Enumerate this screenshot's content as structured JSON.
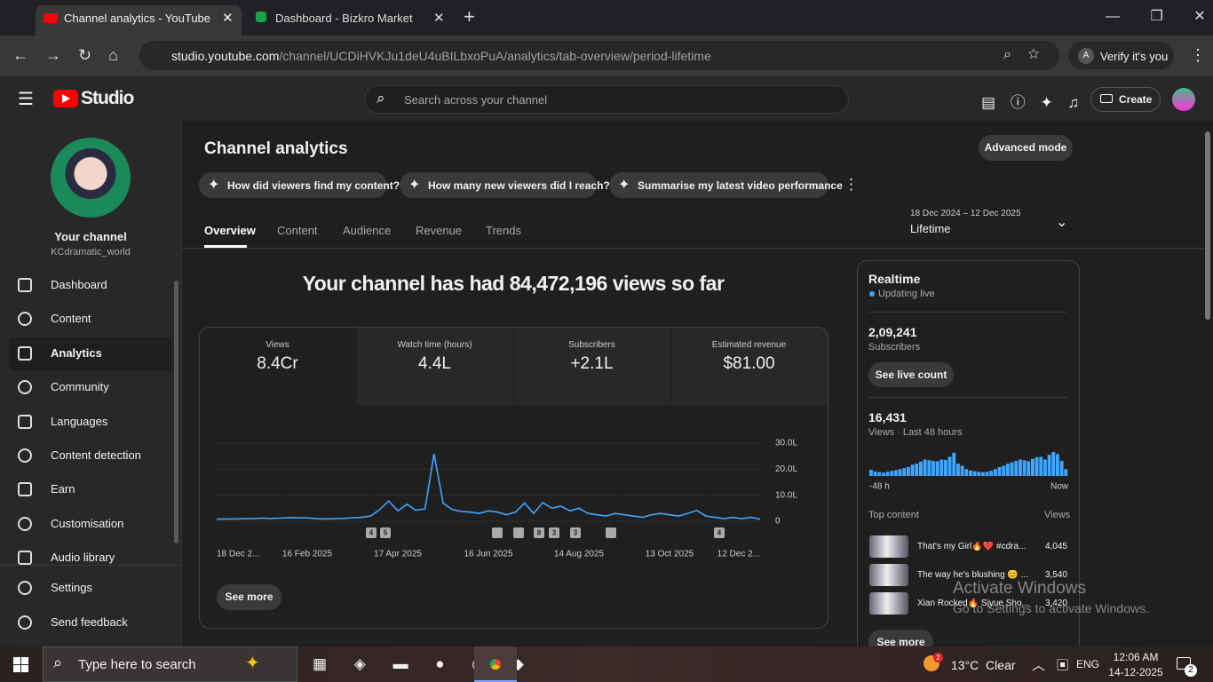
{
  "browser": {
    "tabs": [
      "Channel analytics - YouTube Studio",
      "Dashboard - Bizkro Market"
    ],
    "url_host": "studio.youtube.com",
    "url_path": "/channel/UCDiHVKJu1deU4uBILbxoPuA/analytics/tab-overview/period-lifetime",
    "profile_initial": "A",
    "profile_label": "Verify it's you"
  },
  "header": {
    "logo": "Studio",
    "search_placeholder": "Search across your channel",
    "create": "Create"
  },
  "sidebar": {
    "channel_title": "Your channel",
    "channel_handle": "KCdramatic_world",
    "nav": [
      "Dashboard",
      "Content",
      "Analytics",
      "Community",
      "Languages",
      "Content detection",
      "Earn",
      "Customisation",
      "Audio library"
    ],
    "footer": [
      "Settings",
      "Send feedback"
    ]
  },
  "analytics": {
    "title": "Channel analytics",
    "advanced_mode": "Advanced mode",
    "chips": [
      "How did viewers find my content?",
      "How many new viewers did I reach?",
      "Summarise my latest video performance"
    ],
    "tabs": [
      "Overview",
      "Content",
      "Audience",
      "Revenue",
      "Trends"
    ],
    "date_range": "18 Dec 2024 – 12 Dec 2025",
    "period": "Lifetime",
    "headline": "Your channel has had 84,472,196 views so far",
    "metrics": [
      {
        "label": "Views",
        "value": "8.4Cr"
      },
      {
        "label": "Watch time (hours)",
        "value": "4.4L"
      },
      {
        "label": "Subscribers",
        "value": "+2.1L"
      },
      {
        "label": "Estimated revenue",
        "value": "$81.00"
      }
    ],
    "see_more": "See more"
  },
  "realtime": {
    "title": "Realtime",
    "status": "Updating live",
    "subscribers": "2,09,241",
    "subscribers_label": "Subscribers",
    "live_count": "See live count",
    "views": "16,431",
    "views_label": "Views · Last 48 hours",
    "top_content": "Top content",
    "views_header": "Views",
    "top": [
      {
        "title": "That's my Girl🔥❤️ #cdra...",
        "views": "4,045"
      },
      {
        "title": "The way he's blushing 😊 ...",
        "views": "3,540"
      },
      {
        "title": "Xian Rocked🔥 Siyue Sho...",
        "views": "3,420"
      }
    ],
    "see_more": "See more"
  },
  "chart_data": [
    {
      "type": "line",
      "categories": [
        "18 Dec 2...",
        null,
        null,
        null,
        null,
        null,
        null,
        null,
        null,
        null,
        "16 Feb 2025",
        null,
        null,
        null,
        null,
        null,
        null,
        null,
        null,
        null,
        "17 Apr 2025",
        null,
        null,
        null,
        null,
        null,
        null,
        null,
        null,
        null,
        "16 Jun 2025",
        null,
        null,
        null,
        null,
        null,
        null,
        null,
        null,
        null,
        "14 Aug 2025",
        null,
        null,
        null,
        null,
        null,
        null,
        null,
        null,
        null,
        "13 Oct 2025",
        null,
        null,
        null,
        null,
        null,
        null,
        null,
        null,
        null,
        "12 Dec 2..."
      ],
      "values": [
        80000,
        90000,
        90000,
        100000,
        100000,
        120000,
        110000,
        120000,
        140000,
        130000,
        130000,
        100000,
        90000,
        100000,
        110000,
        130000,
        150000,
        200000,
        450000,
        780000,
        400000,
        650000,
        420000,
        480000,
        2590000,
        700000,
        450000,
        380000,
        350000,
        300000,
        400000,
        350000,
        250000,
        350000,
        700000,
        300000,
        720000,
        500000,
        580000,
        400000,
        500000,
        300000,
        250000,
        200000,
        300000,
        250000,
        200000,
        150000,
        250000,
        300000,
        250000,
        200000,
        300000,
        420000,
        200000,
        150000,
        100000,
        150000,
        100000,
        150000,
        80000
      ],
      "color": "#3ea6ff",
      "ylim": [
        0,
        3000000
      ],
      "yticks": [
        0,
        {
          "value": 1000000,
          "label": "10.0L"
        },
        {
          "value": 2000000,
          "label": "20.0L"
        },
        {
          "value": 3000000,
          "label": "30.0L"
        }
      ],
      "grid": true,
      "annotations": [
        "4",
        "5",
        "8",
        "3",
        "3",
        "4"
      ]
    },
    {
      "type": "bar",
      "categories": [
        "-48 h",
        null,
        null,
        null,
        null,
        null,
        null,
        null,
        null,
        null,
        null,
        null,
        null,
        null,
        null,
        null,
        null,
        null,
        null,
        null,
        null,
        null,
        null,
        null,
        null,
        null,
        null,
        null,
        null,
        null,
        null,
        null,
        null,
        null,
        null,
        null,
        null,
        null,
        null,
        null,
        null,
        null,
        null,
        null,
        null,
        null,
        null,
        "Now"
      ],
      "values": [
        180,
        130,
        110,
        100,
        120,
        150,
        170,
        200,
        230,
        260,
        330,
        360,
        420,
        480,
        460,
        440,
        430,
        480,
        470,
        560,
        680,
        360,
        300,
        200,
        160,
        140,
        120,
        110,
        120,
        150,
        200,
        260,
        300,
        360,
        400,
        440,
        480,
        460,
        430,
        500,
        550,
        560,
        480,
        620,
        700,
        640,
        440,
        200
      ],
      "color": "#3ea6ff"
    }
  ],
  "watermark": {
    "title": "Activate Windows",
    "text": "Go to Settings to activate Windows."
  },
  "taskbar": {
    "search": "Type here to search",
    "weather": "13°C  Clear",
    "weather_badge": "2",
    "language": "ENG",
    "time": "12:06 AM",
    "date": "14-12-2025",
    "notifications": "2"
  }
}
